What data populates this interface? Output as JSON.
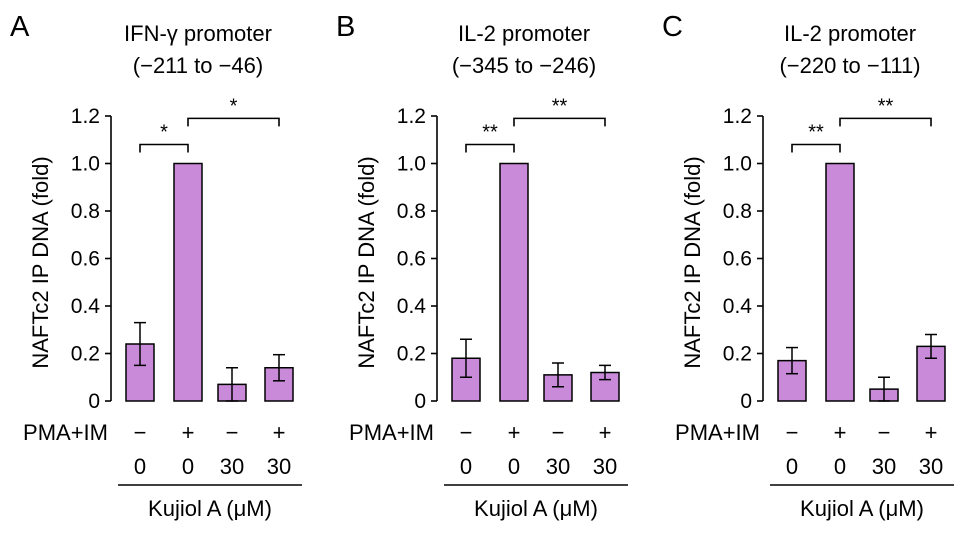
{
  "chart_data": [
    {
      "type": "bar",
      "panel_label": "A",
      "title": [
        "IFN-γ promoter",
        "(−211 to −46)"
      ],
      "ylabel": "NAFTc2 IP DNA (fold)",
      "ylim": [
        0,
        1.2
      ],
      "yticks": [
        "0",
        "0.2",
        "0.4",
        "0.6",
        "0.8",
        "1.0",
        "1.2"
      ],
      "values": [
        0.24,
        1.0,
        0.07,
        0.14
      ],
      "errors": [
        0.09,
        0,
        0.07,
        0.055
      ],
      "pma_im": [
        "−",
        "+",
        "−",
        "+"
      ],
      "kujiol": [
        "0",
        "0",
        "30",
        "30"
      ],
      "significance": [
        {
          "from": 0,
          "to": 1,
          "label": "*",
          "y": 1.08
        },
        {
          "from": 1,
          "to": 3,
          "label": "*",
          "y": 1.19
        }
      ]
    },
    {
      "type": "bar",
      "panel_label": "B",
      "title": [
        "IL-2 promoter",
        "(−345 to −246)"
      ],
      "ylabel": "NAFTc2 IP DNA (fold)",
      "ylim": [
        0,
        1.2
      ],
      "yticks": [
        "0",
        "0.2",
        "0.4",
        "0.6",
        "0.8",
        "1.0",
        "1.2"
      ],
      "values": [
        0.18,
        1.0,
        0.11,
        0.12
      ],
      "errors": [
        0.08,
        0,
        0.05,
        0.03
      ],
      "pma_im": [
        "−",
        "+",
        "−",
        "+"
      ],
      "kujiol": [
        "0",
        "0",
        "30",
        "30"
      ],
      "significance": [
        {
          "from": 0,
          "to": 1,
          "label": "**",
          "y": 1.08
        },
        {
          "from": 1,
          "to": 3,
          "label": "**",
          "y": 1.19
        }
      ]
    },
    {
      "type": "bar",
      "panel_label": "C",
      "title": [
        "IL-2 promoter",
        "(−220 to −111)"
      ],
      "ylabel": "NAFTc2 IP DNA (fold)",
      "ylim": [
        0,
        1.2
      ],
      "yticks": [
        "0",
        "0.2",
        "0.4",
        "0.6",
        "0.8",
        "1.0",
        "1.2"
      ],
      "values": [
        0.17,
        1.0,
        0.05,
        0.23
      ],
      "errors": [
        0.055,
        0,
        0.05,
        0.05
      ],
      "pma_im": [
        "−",
        "+",
        "−",
        "+"
      ],
      "kujiol": [
        "0",
        "0",
        "30",
        "30"
      ],
      "significance": [
        {
          "from": 0,
          "to": 1,
          "label": "**",
          "y": 1.08
        },
        {
          "from": 1,
          "to": 3,
          "label": "**",
          "y": 1.19
        }
      ]
    }
  ],
  "row_labels": {
    "pma_im": "PMA+IM",
    "kujiol_caption": "Kujiol A (μM)"
  },
  "colors": {
    "bar_fill": "#c98bd9",
    "stroke": "#000000"
  }
}
